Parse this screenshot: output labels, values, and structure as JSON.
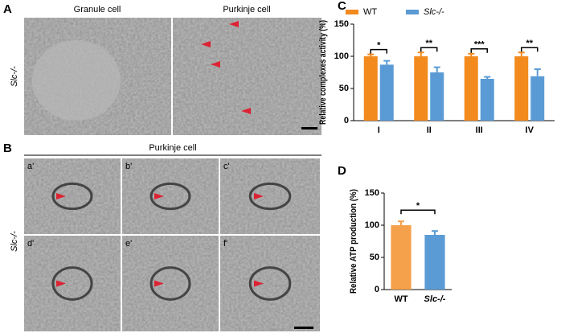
{
  "panels": {
    "a_label": "A",
    "granule": "Granule cell",
    "purkinje": "Purkinje cell",
    "genotype_a": "Slc-/-",
    "b_label": "B",
    "b_title": "Purkinje cell",
    "genotype_b": "Slc-/-",
    "sub": [
      "a'",
      "b'",
      "c'",
      "d'",
      "e'",
      "f'"
    ]
  },
  "chart_data": [
    {
      "type": "bar",
      "panel": "C",
      "ylabel": "Relative complexes activity (%)",
      "categories": [
        "I",
        "II",
        "III",
        "IV"
      ],
      "series": [
        {
          "name": "WT",
          "color": "#f28a1e",
          "values": [
            100,
            100,
            100,
            100
          ],
          "errors": [
            3,
            6,
            4,
            6
          ]
        },
        {
          "name": "Slc-/-",
          "color": "#5b9bd5",
          "values": [
            87,
            75,
            65,
            69
          ],
          "errors": [
            6,
            8,
            3,
            11
          ]
        }
      ],
      "significance": [
        "*",
        "**",
        "***",
        "**"
      ],
      "ylim": [
        0,
        150
      ],
      "yticks": [
        0,
        50,
        100,
        150
      ]
    },
    {
      "type": "bar",
      "panel": "D",
      "ylabel": "Relative ATP production (%)",
      "categories": [
        "WT",
        "Slc-/-"
      ],
      "values": [
        100,
        85
      ],
      "errors": [
        6,
        6
      ],
      "colors": [
        "#f5a04a",
        "#5b9bd5"
      ],
      "significance": [
        "*"
      ],
      "ylim": [
        0,
        150
      ],
      "yticks": [
        0,
        50,
        100,
        150
      ]
    }
  ]
}
